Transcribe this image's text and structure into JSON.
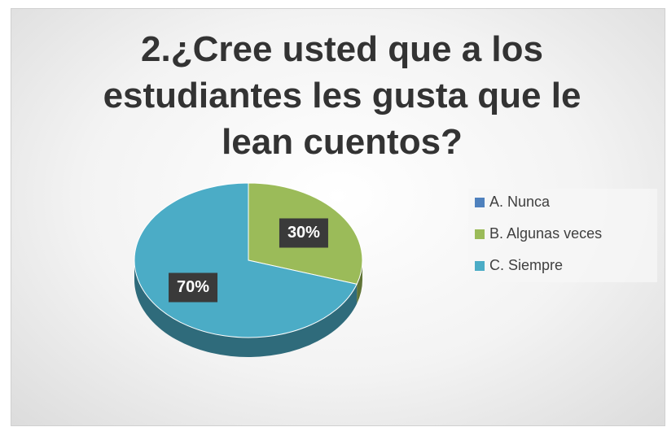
{
  "chart_data": {
    "type": "pie",
    "title": "2.¿Cree usted que a los estudiantes les gusta que le lean cuentos?",
    "categories": [
      "A. Nunca",
      "B. Algunas veces",
      "C. Siempre"
    ],
    "values": [
      0,
      30,
      70
    ],
    "value_labels": [
      null,
      "30%",
      "70%"
    ],
    "colors": [
      "#4f81bd",
      "#9bbb59",
      "#4bacc6"
    ],
    "legend": "right"
  }
}
